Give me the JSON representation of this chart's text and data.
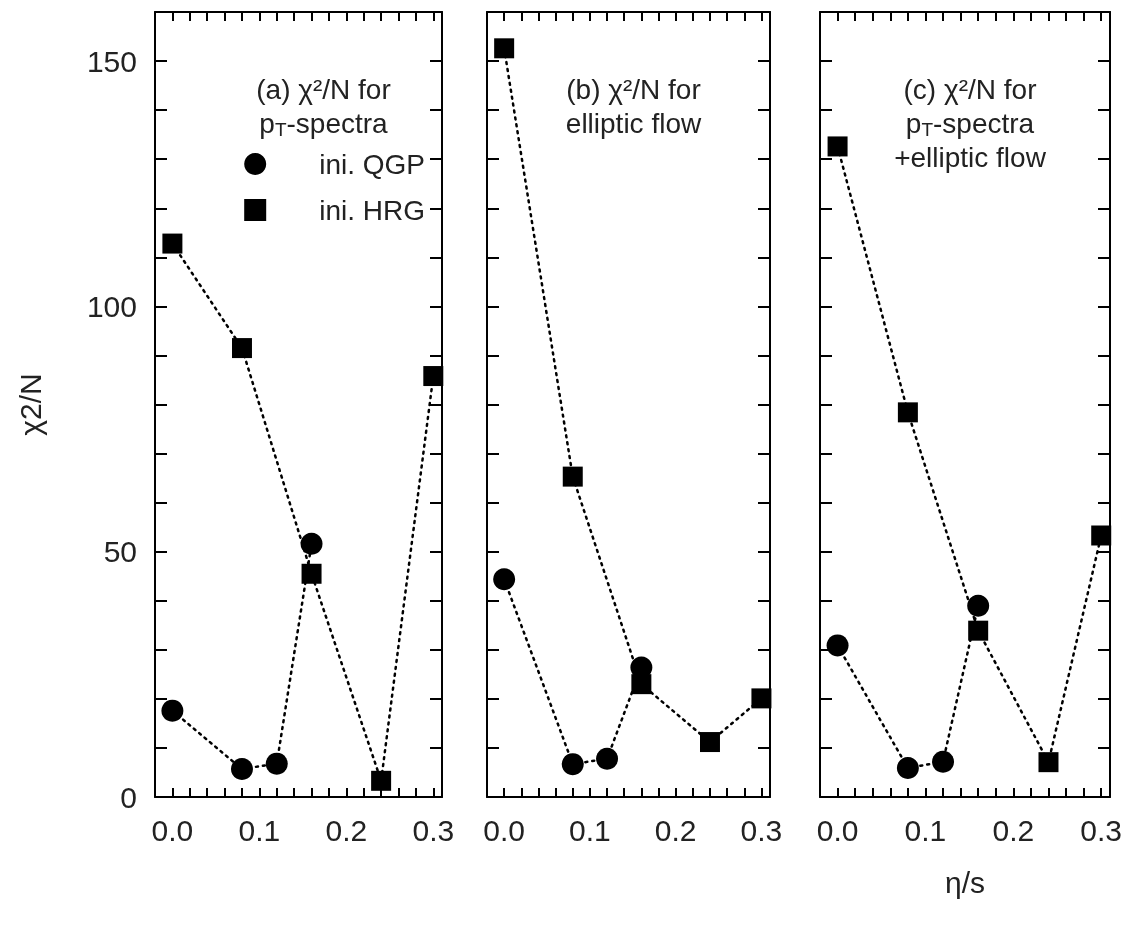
{
  "chart_data": [
    {
      "type": "line",
      "title": "(a) χ²/N for\np$_{T}$-spectra",
      "ylabel": "χ2/N",
      "xlim": [
        -0.02,
        0.31
      ],
      "ylim": [
        0,
        160
      ],
      "legend": "top right",
      "grid": false,
      "line_style": "dotted",
      "xticks": [
        {
          "value": 0,
          "label": "0.0"
        },
        {
          "value": 0.02,
          "label": null
        },
        {
          "value": 0.04,
          "label": null
        },
        {
          "value": 0.06,
          "label": null
        },
        {
          "value": 0.08,
          "label": null
        },
        {
          "value": 0.1,
          "label": "0.1"
        },
        {
          "value": 0.12,
          "label": null
        },
        {
          "value": 0.14,
          "label": null
        },
        {
          "value": 0.16,
          "label": null
        },
        {
          "value": 0.18,
          "label": null
        },
        {
          "value": 0.2,
          "label": "0.2"
        },
        {
          "value": 0.22,
          "label": null
        },
        {
          "value": 0.24,
          "label": null
        },
        {
          "value": 0.26,
          "label": null
        },
        {
          "value": 0.28,
          "label": null
        },
        {
          "value": 0.3,
          "label": "0.3"
        }
      ],
      "yticks": [
        0,
        {
          "value": 10,
          "label": null
        },
        {
          "value": 20,
          "label": null
        },
        {
          "value": 30,
          "label": null
        },
        {
          "value": 40,
          "label": null
        },
        50,
        {
          "value": 60,
          "label": null
        },
        {
          "value": 70,
          "label": null
        },
        {
          "value": 80,
          "label": null
        },
        {
          "value": 90,
          "label": null
        },
        100,
        {
          "value": 110,
          "label": null
        },
        {
          "value": 120,
          "label": null
        },
        {
          "value": 130,
          "label": null
        },
        {
          "value": 140,
          "label": null
        },
        150
      ],
      "series": [
        {
          "name": "ini. QGP",
          "color": "#000000",
          "marker": "circle",
          "x": [
            0,
            0.08,
            0.12,
            0.16
          ],
          "values": [
            17.6,
            5.7,
            6.8,
            51.6
          ]
        },
        {
          "name": "ini. HRG",
          "color": "#000000",
          "marker": "square",
          "x": [
            0,
            0.08,
            0.16,
            0.24,
            0.3
          ],
          "values": [
            112.8,
            91.5,
            45.5,
            3.3,
            85.8
          ]
        }
      ]
    },
    {
      "type": "line",
      "title": "(b) χ²/N for\nelliptic flow",
      "xlim": [
        -0.02,
        0.31
      ],
      "ylim": [
        0,
        160
      ],
      "tick_labels": "x",
      "grid": false,
      "line_style": "dotted",
      "xticks": [
        {
          "value": 0,
          "label": "0.0"
        },
        {
          "value": 0.02,
          "label": null
        },
        {
          "value": 0.04,
          "label": null
        },
        {
          "value": 0.06,
          "label": null
        },
        {
          "value": 0.08,
          "label": null
        },
        {
          "value": 0.1,
          "label": "0.1"
        },
        {
          "value": 0.12,
          "label": null
        },
        {
          "value": 0.14,
          "label": null
        },
        {
          "value": 0.16,
          "label": null
        },
        {
          "value": 0.18,
          "label": null
        },
        {
          "value": 0.2,
          "label": "0.2"
        },
        {
          "value": 0.22,
          "label": null
        },
        {
          "value": 0.24,
          "label": null
        },
        {
          "value": 0.26,
          "label": null
        },
        {
          "value": 0.28,
          "label": null
        },
        {
          "value": 0.3,
          "label": "0.3"
        }
      ],
      "yticks": [
        0,
        {
          "value": 10,
          "label": null
        },
        {
          "value": 20,
          "label": null
        },
        {
          "value": 30,
          "label": null
        },
        {
          "value": 40,
          "label": null
        },
        50,
        {
          "value": 60,
          "label": null
        },
        {
          "value": 70,
          "label": null
        },
        {
          "value": 80,
          "label": null
        },
        {
          "value": 90,
          "label": null
        },
        100,
        {
          "value": 110,
          "label": null
        },
        {
          "value": 120,
          "label": null
        },
        {
          "value": 130,
          "label": null
        },
        {
          "value": 140,
          "label": null
        },
        150
      ],
      "series": [
        {
          "color": "#000000",
          "marker": "circle",
          "x": [
            0,
            0.08,
            0.12,
            0.16
          ],
          "values": [
            44.4,
            6.7,
            7.8,
            26.4
          ]
        },
        {
          "color": "#000000",
          "marker": "square",
          "x": [
            0,
            0.08,
            0.16,
            0.24,
            0.3
          ],
          "values": [
            152.6,
            65.3,
            23,
            11.2,
            20.1
          ]
        }
      ]
    },
    {
      "type": "line",
      "title": "(c) χ²/N for\np$_{T}$-spectra\n+elliptic flow",
      "xlabel": "η/s",
      "xlim": [
        -0.02,
        0.31
      ],
      "ylim": [
        0,
        160
      ],
      "tick_labels": "x",
      "grid": false,
      "line_style": "dotted",
      "xticks": [
        {
          "value": 0,
          "label": "0.0"
        },
        {
          "value": 0.02,
          "label": null
        },
        {
          "value": 0.04,
          "label": null
        },
        {
          "value": 0.06,
          "label": null
        },
        {
          "value": 0.08,
          "label": null
        },
        {
          "value": 0.1,
          "label": "0.1"
        },
        {
          "value": 0.12,
          "label": null
        },
        {
          "value": 0.14,
          "label": null
        },
        {
          "value": 0.16,
          "label": null
        },
        {
          "value": 0.18,
          "label": null
        },
        {
          "value": 0.2,
          "label": "0.2"
        },
        {
          "value": 0.22,
          "label": null
        },
        {
          "value": 0.24,
          "label": null
        },
        {
          "value": 0.26,
          "label": null
        },
        {
          "value": 0.28,
          "label": null
        },
        {
          "value": 0.3,
          "label": "0.3"
        }
      ],
      "yticks": [
        0,
        {
          "value": 10,
          "label": null
        },
        {
          "value": 20,
          "label": null
        },
        {
          "value": 30,
          "label": null
        },
        {
          "value": 40,
          "label": null
        },
        50,
        {
          "value": 60,
          "label": null
        },
        {
          "value": 70,
          "label": null
        },
        {
          "value": 80,
          "label": null
        },
        {
          "value": 90,
          "label": null
        },
        100,
        {
          "value": 110,
          "label": null
        },
        {
          "value": 120,
          "label": null
        },
        {
          "value": 130,
          "label": null
        },
        {
          "value": 140,
          "label": null
        },
        150
      ],
      "series": [
        {
          "color": "#000000",
          "marker": "circle",
          "x": [
            0,
            0.08,
            0.12,
            0.16
          ],
          "values": [
            30.9,
            5.9,
            7.2,
            39
          ]
        },
        {
          "color": "#000000",
          "marker": "square",
          "x": [
            0,
            0.08,
            0.16,
            0.24,
            0.3
          ],
          "values": [
            132.6,
            78.4,
            33.9,
            7.1,
            53.3
          ]
        }
      ]
    }
  ]
}
